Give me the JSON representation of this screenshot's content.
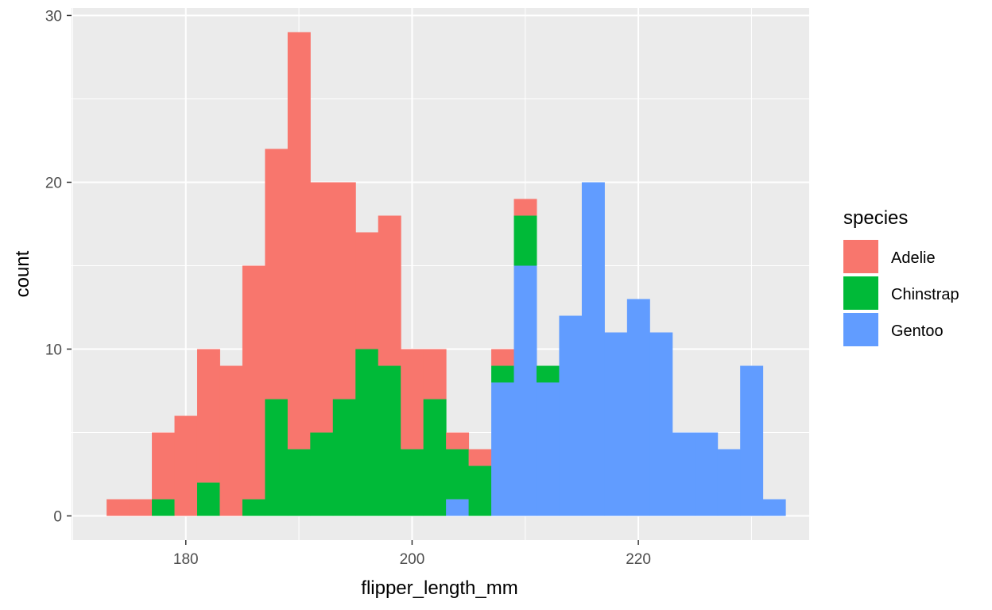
{
  "chart_data": {
    "type": "bar",
    "stacking": "stacked",
    "xlabel": "flipper_length_mm",
    "ylabel": "count",
    "legend_title": "species",
    "legend_position": "right",
    "grid": true,
    "xlim": [
      169.9,
      235.1
    ],
    "ylim": [
      -1.45,
      30.45
    ],
    "x_ticks": [
      180,
      200,
      220
    ],
    "y_ticks": [
      0,
      10,
      20,
      30
    ],
    "bin_width": 2,
    "bin_centers": [
      174,
      176,
      178,
      180,
      182,
      184,
      186,
      188,
      190,
      192,
      194,
      196,
      198,
      200,
      202,
      204,
      206,
      208,
      210,
      212,
      214,
      216,
      218,
      220,
      222,
      224,
      226,
      228,
      230,
      232
    ],
    "series": [
      {
        "name": "Gentoo",
        "color": "#619CFF",
        "values": [
          0,
          0,
          0,
          0,
          0,
          0,
          0,
          0,
          0,
          0,
          0,
          0,
          0,
          0,
          0,
          1,
          0,
          8,
          15,
          8,
          12,
          20,
          11,
          13,
          11,
          5,
          5,
          4,
          9,
          1
        ]
      },
      {
        "name": "Chinstrap",
        "color": "#00BA38",
        "values": [
          0,
          0,
          1,
          0,
          2,
          0,
          1,
          7,
          4,
          5,
          7,
          10,
          9,
          4,
          7,
          3,
          3,
          1,
          3,
          1,
          0,
          0,
          0,
          0,
          0,
          0,
          0,
          0,
          0,
          0
        ]
      },
      {
        "name": "Adelie",
        "color": "#F8766D",
        "values": [
          1,
          1,
          4,
          6,
          8,
          9,
          14,
          15,
          25,
          15,
          13,
          7,
          9,
          6,
          3,
          1,
          1,
          1,
          1,
          0,
          0,
          0,
          0,
          0,
          0,
          0,
          0,
          0,
          0,
          0
        ]
      }
    ],
    "legend_order": [
      "Adelie",
      "Chinstrap",
      "Gentoo"
    ],
    "panel_background": "#EBEBEB",
    "grid_color": "#FFFFFF"
  }
}
